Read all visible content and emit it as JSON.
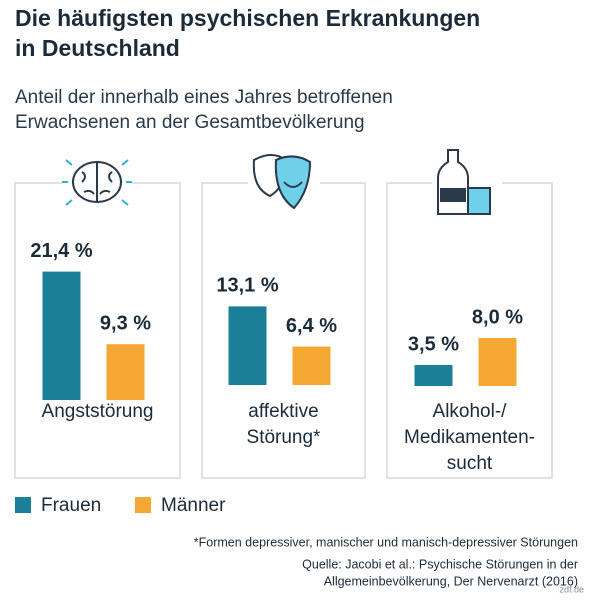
{
  "title": "Die häufigsten psychischen Erkrankungen in Deutschland",
  "subtitle": [
    "Anteil der innerhalb eines Jahres betroffenen",
    "Erwachsenen an der Gesamtbevölkerung"
  ],
  "chart_data": {
    "type": "bar",
    "categories": [
      [
        "Angststörung"
      ],
      [
        "affektive",
        "Störung*"
      ],
      [
        "Alkohol-/",
        "Medikamenten-",
        "sucht"
      ]
    ],
    "series": [
      {
        "name": "Frauen",
        "color": "#1b7f99",
        "values": [
          21.4,
          13.1,
          3.5
        ],
        "value_labels": [
          "21,4 %",
          "13,1 %",
          "3,5 %"
        ]
      },
      {
        "name": "Männer",
        "color": "#f5a733",
        "values": [
          9.3,
          6.4,
          8.0
        ],
        "value_labels": [
          "9,3 %",
          "6,4 %",
          "8,0 %"
        ]
      }
    ],
    "legend": "bottom-left"
  },
  "footnote": "*Formen depressiver, manischer und manisch-depressiver Störungen",
  "source": [
    "Quelle: Jacobi et al.: Psychische Störungen in der",
    "Allgemeinbevölkerung, Der Nervenarzt (2016)"
  ],
  "credit": "zdf.de"
}
